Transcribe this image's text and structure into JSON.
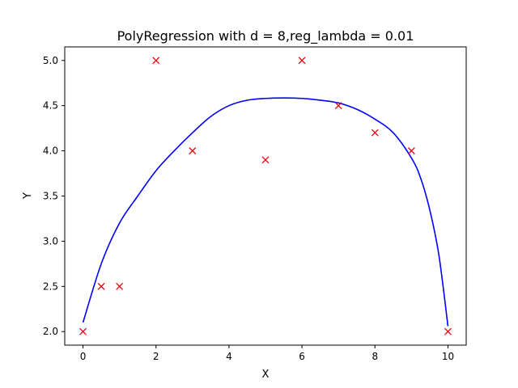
{
  "chart_data": {
    "type": "scatter",
    "title": "PolyRegression with d = 8,reg_lambda = 0.01",
    "xlabel": "X",
    "ylabel": "Y",
    "xlim": [
      -0.5,
      10.5
    ],
    "ylim": [
      1.85,
      5.15
    ],
    "xticks": [
      0,
      2,
      4,
      6,
      8,
      10
    ],
    "xtick_labels": [
      "0",
      "2",
      "4",
      "6",
      "8",
      "10"
    ],
    "yticks": [
      2.0,
      2.5,
      3.0,
      3.5,
      4.0,
      4.5,
      5.0
    ],
    "ytick_labels": [
      "2.0",
      "2.5",
      "3.0",
      "3.5",
      "4.0",
      "4.5",
      "5.0"
    ],
    "grid": false,
    "series": [
      {
        "kind": "scatter",
        "marker": "x",
        "color": "#e8000b",
        "x": [
          0,
          0.5,
          1,
          2,
          3,
          5,
          6,
          7,
          8,
          9,
          10
        ],
        "y": [
          2.0,
          2.5,
          2.5,
          5.0,
          4.0,
          3.9,
          5.0,
          4.5,
          4.2,
          4.0,
          2.0
        ]
      },
      {
        "kind": "line",
        "color": "#0000ff",
        "x": [
          0,
          0.5,
          1,
          1.5,
          2,
          2.5,
          3,
          3.5,
          4,
          4.5,
          5,
          5.5,
          6,
          6.5,
          7,
          7.5,
          8,
          8.5,
          9,
          9.25,
          9.5,
          9.75,
          10
        ],
        "y": [
          2.1,
          2.75,
          3.2,
          3.5,
          3.78,
          4.0,
          4.2,
          4.38,
          4.5,
          4.56,
          4.58,
          4.585,
          4.58,
          4.56,
          4.53,
          4.46,
          4.35,
          4.2,
          3.92,
          3.7,
          3.35,
          2.85,
          2.06
        ]
      }
    ]
  }
}
